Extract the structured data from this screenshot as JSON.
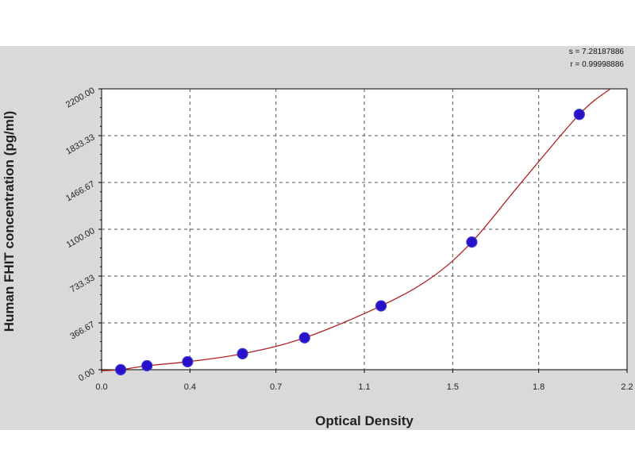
{
  "stats": {
    "line1": "s = 7.28187886",
    "line2": "r = 0.99998886"
  },
  "chart_data": {
    "type": "scatter",
    "xlabel": "Optical Density",
    "ylabel": "Human FHIT  concentration (pg/ml)",
    "xlim": [
      0.0,
      2.2
    ],
    "ylim": [
      0.0,
      2200.0
    ],
    "x_ticks": [
      0.0,
      0.37,
      0.73,
      1.1,
      1.47,
      1.83,
      2.2
    ],
    "x_tick_labels": [
      "0.0",
      "0.4",
      "0.7",
      "1.1",
      "1.5",
      "1.8",
      "2.2"
    ],
    "y_ticks": [
      0.0,
      366.67,
      733.33,
      1100.0,
      1466.67,
      1833.33,
      2200.0
    ],
    "y_tick_labels": [
      "0.00",
      "366.67",
      "733.33",
      "1100.00",
      "1466.67",
      "1833.33",
      "2200.00"
    ],
    "grid": true,
    "series": [
      {
        "points": [
          {
            "x": 0.08,
            "y": 0
          },
          {
            "x": 0.19,
            "y": 31.25
          },
          {
            "x": 0.36,
            "y": 62.5
          },
          {
            "x": 0.59,
            "y": 125
          },
          {
            "x": 0.85,
            "y": 250
          },
          {
            "x": 1.17,
            "y": 500
          },
          {
            "x": 1.55,
            "y": 1000
          },
          {
            "x": 2.0,
            "y": 2000
          }
        ]
      }
    ],
    "fit_curve": {
      "x": [
        0.0,
        0.08,
        0.19,
        0.36,
        0.59,
        0.85,
        1.17,
        1.38,
        1.55,
        1.75,
        2.0,
        2.13
      ],
      "y": [
        -8,
        0,
        31.25,
        62.5,
        125,
        250,
        500,
        720,
        1000,
        1450,
        2000,
        2200
      ]
    },
    "colors": {
      "marker": "#2a10c9",
      "marker_edge": "#3a3acf",
      "curve": "#b22222",
      "grid": "#555555"
    }
  }
}
